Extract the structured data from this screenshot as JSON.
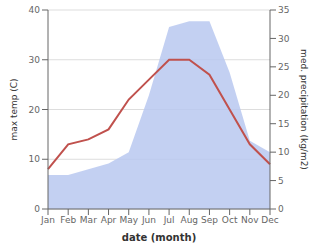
{
  "chart_data": {
    "type": "line",
    "categories": [
      "Jan",
      "Feb",
      "Mar",
      "Apr",
      "May",
      "Jun",
      "Jul",
      "Aug",
      "Sep",
      "Oct",
      "Nov",
      "Dec"
    ],
    "series": [
      {
        "type": "area",
        "axis": "y2",
        "color": "#b8c8f0",
        "values": [
          6,
          6,
          7,
          8,
          10,
          20,
          32,
          33,
          33,
          24,
          12,
          10
        ]
      },
      {
        "type": "line",
        "color": "#c0514d",
        "values": [
          8,
          13,
          14,
          16,
          22,
          26,
          30,
          30,
          27,
          20,
          13,
          9
        ]
      }
    ],
    "xlabel": "date (month)",
    "ylabel": "max temp (C)",
    "y2label": "med. precipitation (kg/m2)",
    "ylim": [
      0,
      40
    ],
    "yticks": [
      0,
      10,
      20,
      30,
      40
    ],
    "y2lim": [
      0,
      35
    ],
    "y2ticks": [
      0,
      5,
      10,
      15,
      20,
      25,
      30,
      35
    ],
    "grid": true
  }
}
